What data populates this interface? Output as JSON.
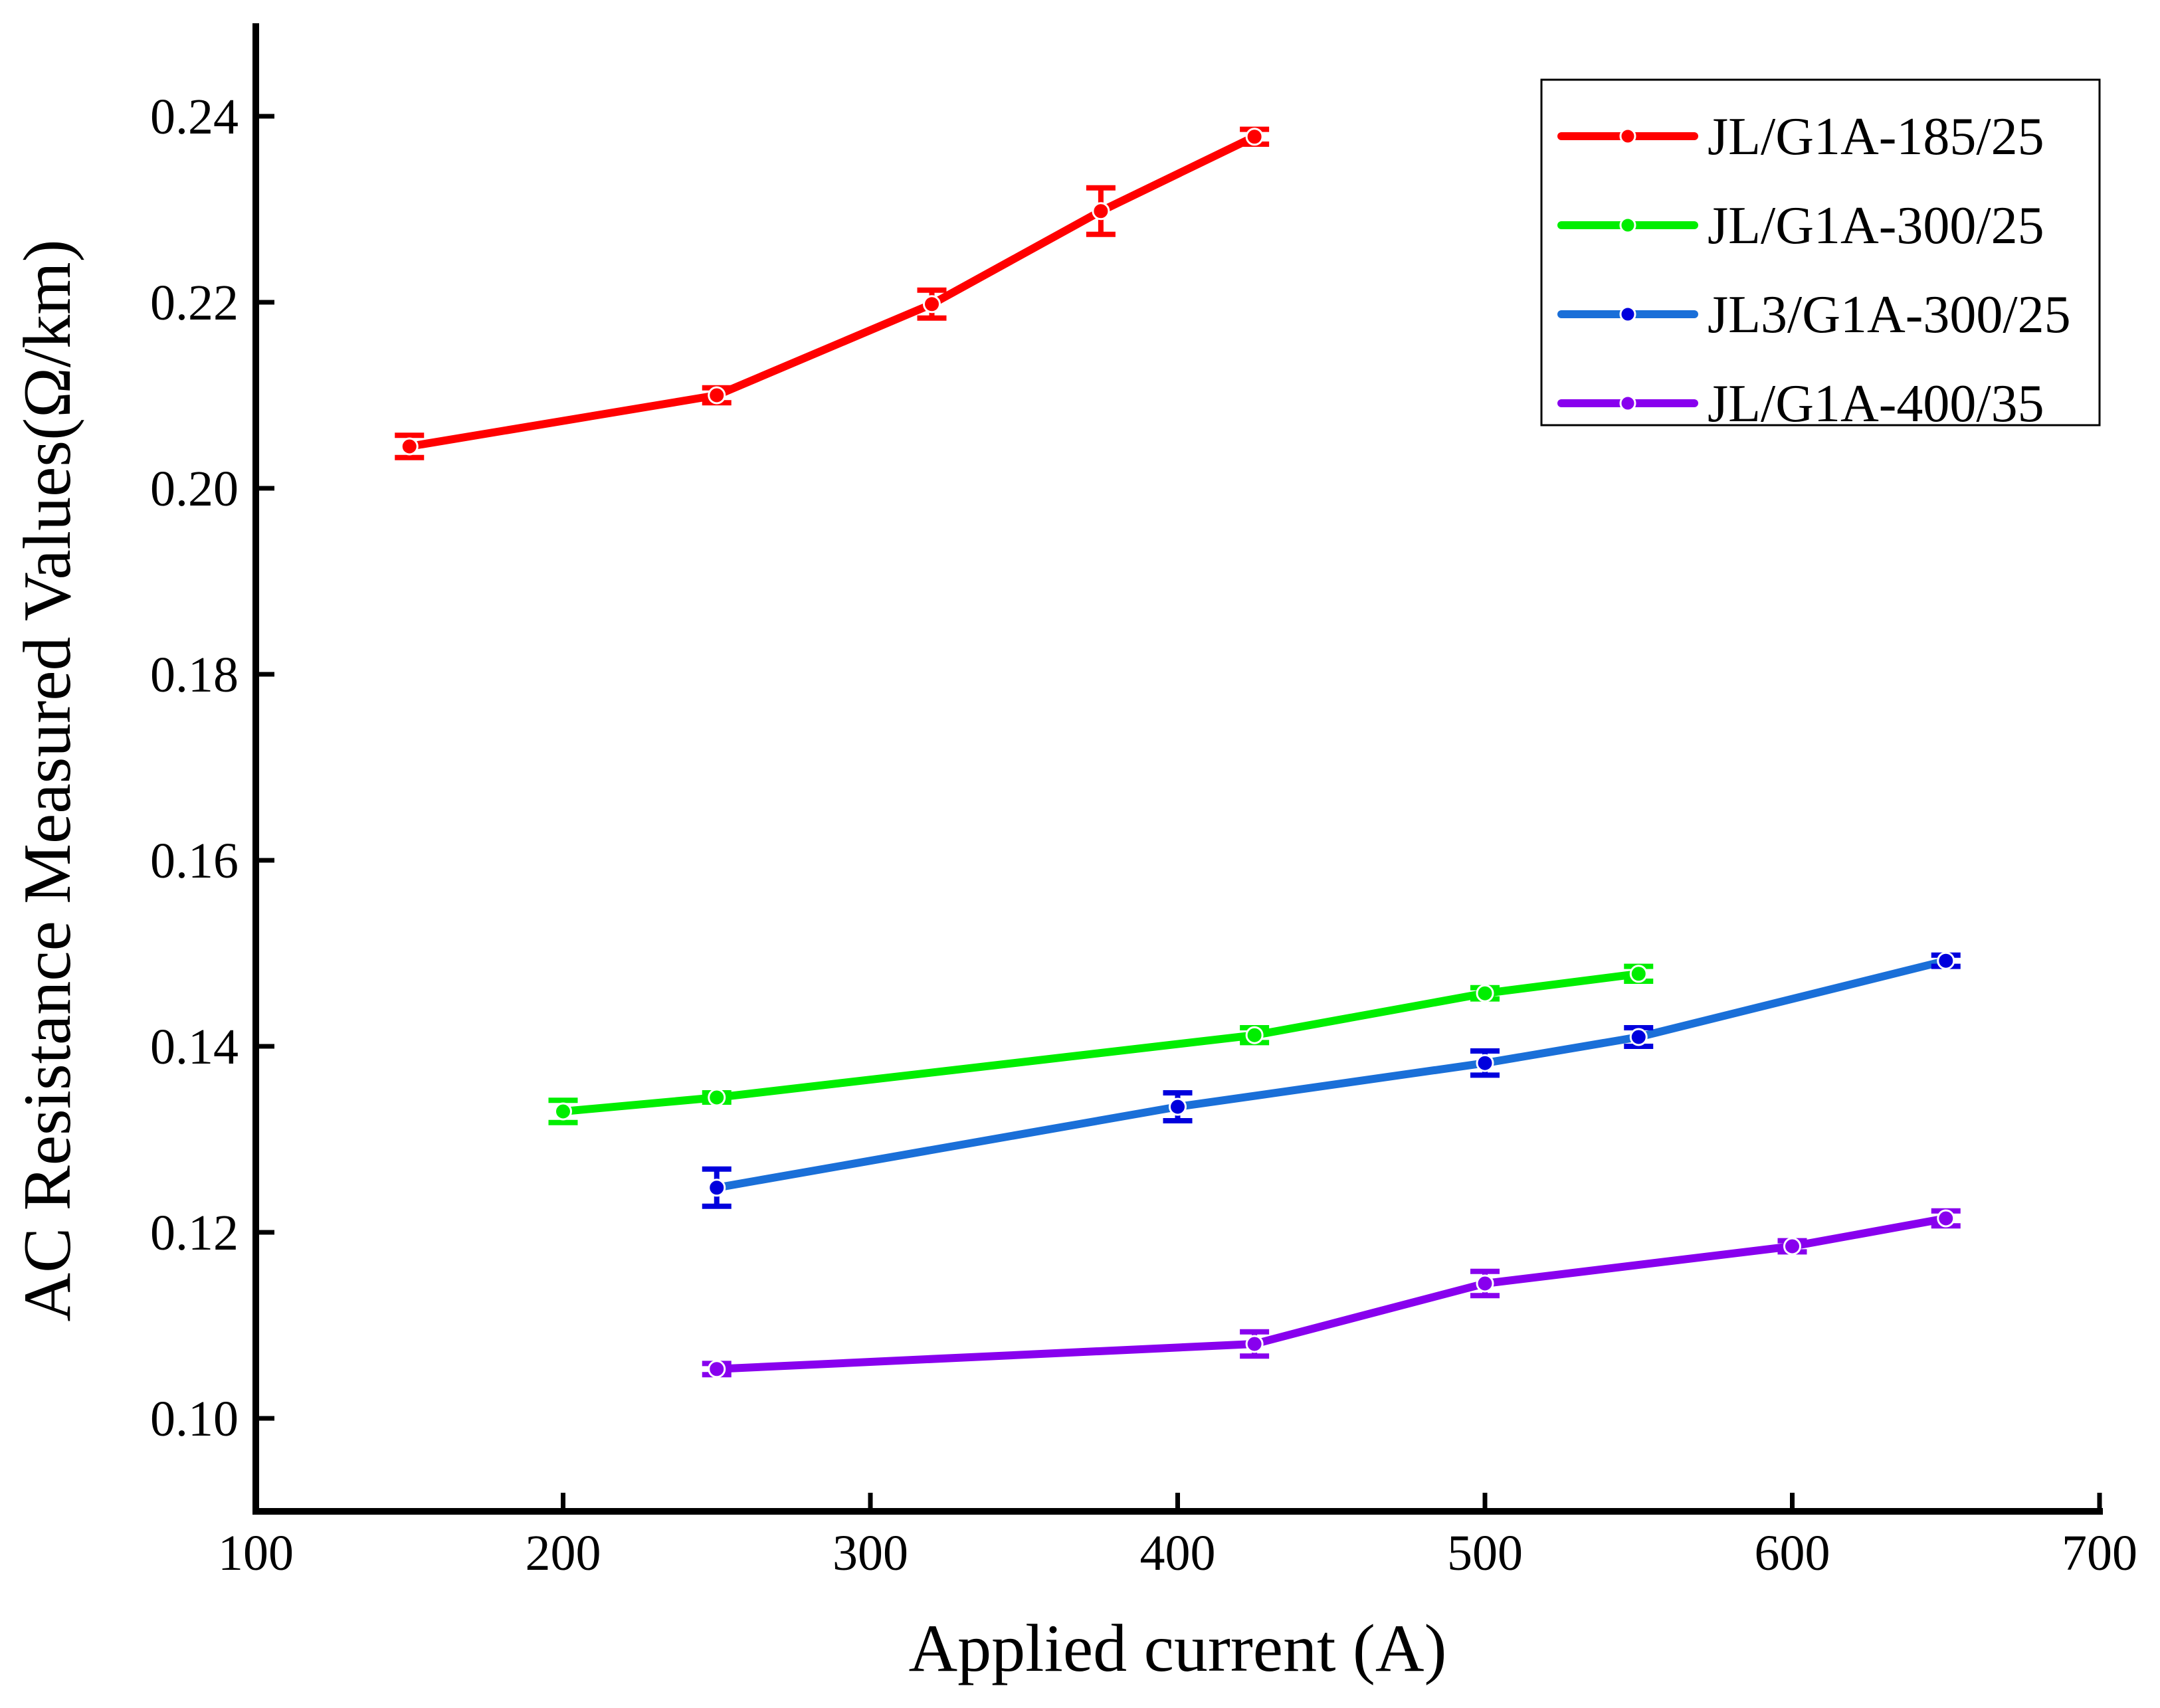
{
  "chart_data": {
    "type": "line",
    "title": "",
    "xlabel": "Applied current (A)",
    "ylabel": "AC Resistance Measured Values(Ω/km)",
    "xlim": [
      100,
      700
    ],
    "ylim": [
      0.09,
      0.25
    ],
    "xticks": [
      100,
      200,
      300,
      400,
      500,
      600,
      700
    ],
    "yticks": [
      0.1,
      0.12,
      0.14,
      0.16,
      0.18,
      0.2,
      0.22,
      0.24
    ],
    "xtick_labels": [
      "100",
      "200",
      "300",
      "400",
      "500",
      "600",
      "700"
    ],
    "ytick_labels": [
      "0.10",
      "0.12",
      "0.14",
      "0.16",
      "0.18",
      "0.20",
      "0.22",
      "0.24"
    ],
    "grid": false,
    "legend_position": "top-right",
    "series": [
      {
        "name": "JL/G1A-185/25",
        "color": "#ff0000",
        "x": [
          150,
          250,
          320,
          375,
          425
        ],
        "y": [
          0.2045,
          0.21,
          0.2198,
          0.2298,
          0.2378
        ],
        "err": [
          0.0012,
          0.0008,
          0.0015,
          0.0025,
          0.0008
        ]
      },
      {
        "name": "JL/G1A-300/25",
        "color": "#00ee00",
        "x": [
          200,
          250,
          425,
          500,
          550
        ],
        "y": [
          0.133,
          0.1345,
          0.1412,
          0.1457,
          0.1478
        ],
        "err": [
          0.0012,
          0.0005,
          0.0008,
          0.0006,
          0.0008
        ]
      },
      {
        "name": "JL3/G1A-300/25",
        "color": "#1a6fd8",
        "marker_color": "#0000dd",
        "x": [
          250,
          400,
          500,
          550,
          650
        ],
        "y": [
          0.1248,
          0.1335,
          0.1382,
          0.141,
          0.1492
        ],
        "err": [
          0.002,
          0.0015,
          0.0013,
          0.001,
          0.0006
        ]
      },
      {
        "name": "JL/G1A-400/35",
        "color": "#8800ee",
        "x": [
          250,
          425,
          500,
          600,
          650
        ],
        "y": [
          0.1053,
          0.108,
          0.1145,
          0.1185,
          0.1215
        ],
        "err": [
          0.0006,
          0.0013,
          0.0013,
          0.0006,
          0.0008
        ]
      }
    ]
  }
}
